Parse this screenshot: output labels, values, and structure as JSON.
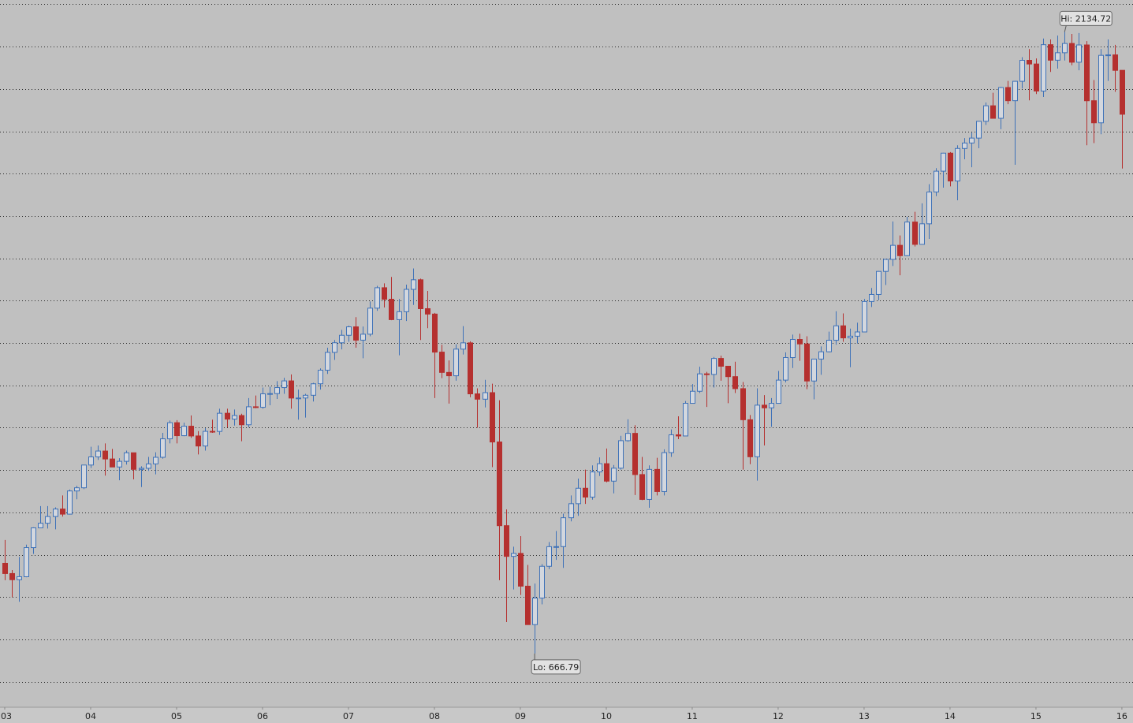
{
  "chart_data": {
    "type": "candlestick",
    "up_color": "#3f72b8",
    "down_color": "#b5302f",
    "grid": true,
    "ylim": [
      540,
      2210
    ],
    "yticks": [
      600,
      700,
      800,
      900,
      1000,
      1100,
      1200,
      1300,
      1400,
      1500,
      1600,
      1700,
      1800,
      1900,
      2000,
      2100,
      2200
    ],
    "xlim": [
      -0.66,
      157.55
    ],
    "xticks": [
      {
        "value": 0,
        "label": "03"
      },
      {
        "value": 12,
        "label": "04"
      },
      {
        "value": 24,
        "label": "05"
      },
      {
        "value": 36,
        "label": "06"
      },
      {
        "value": 48,
        "label": "07"
      },
      {
        "value": 60,
        "label": "08"
      },
      {
        "value": 72,
        "label": "09"
      },
      {
        "value": 84,
        "label": "10"
      },
      {
        "value": 96,
        "label": "11"
      },
      {
        "value": 108,
        "label": "12"
      },
      {
        "value": 120,
        "label": "13"
      },
      {
        "value": 132,
        "label": "14"
      },
      {
        "value": 144,
        "label": "15"
      },
      {
        "value": 156,
        "label": "16"
      }
    ],
    "annotations": [
      {
        "label": "Hi: 2134.72",
        "x": 148,
        "y": 2134.72
      },
      {
        "label": "Lo: 666.79",
        "x": 74,
        "y": 666.79
      }
    ],
    "open": [
      879.82,
      855.7,
      841.15,
      848.18,
      916.92,
      963.59,
      974.5,
      990.31,
      1008.01,
      995.97,
      1050.71,
      1058.2,
      1111.92,
      1131.13,
      1144.94,
      1126.21,
      1107.3,
      1120.68,
      1140.84,
      1101.72,
      1104.24,
      1114.58,
      1130.2,
      1173.82,
      1211.92,
      1181.27,
      1203.6,
      1180.59,
      1156.85,
      1191.5,
      1191.33,
      1234.18,
      1220.33,
      1228.81,
      1207.01,
      1249.48,
      1248.29,
      1280.08,
      1280.66,
      1294.83,
      1310.61,
      1270.09,
      1270.2,
      1276.66,
      1303.82,
      1335.85,
      1377.94,
      1400.63,
      1418.3,
      1438.24,
      1406.82,
      1420.86,
      1482.37,
      1530.62,
      1503.35,
      1455.27,
      1473.99,
      1526.75,
      1549.38,
      1481.14,
      1468.36,
      1378.55,
      1330.63,
      1322.7,
      1385.59,
      1400.38,
      1280,
      1267.38,
      1282.83,
      1166.36,
      968.75,
      896.24,
      903.25,
      825.88,
      735.09,
      797.87,
      872.81,
      919.14,
      919.32,
      987.48,
      1020.62,
      1057.08,
      1036.19,
      1095.63,
      1115.1,
      1073.87,
      1104.49,
      1169.43,
      1186.69,
      1089.41,
      1030.71,
      1101.6,
      1049.33,
      1141.2,
      1183.26,
      1180.55,
      1257.64,
      1286.12,
      1327.22,
      1325.83,
      1363.61,
      1345.2,
      1320.64,
      1292.28,
      1218.89,
      1131.42,
      1253.3,
      1246.96,
      1257.6,
      1312.41,
      1365.68,
      1408.47,
      1397.91,
      1310.33,
      1362.16,
      1379.32,
      1406.58,
      1440.67,
      1412.16,
      1416.18,
      1426.19,
      1498.11,
      1514.68,
      1569.19,
      1597.57,
      1630.74,
      1606.28,
      1685.73,
      1632.97,
      1681.55,
      1756.54,
      1805.81,
      1848.36,
      1782.59,
      1859.45,
      1872.34,
      1883.95,
      1923.57,
      1960.23,
      1930.67,
      2003.37,
      1972.29,
      2018.05,
      2067.56,
      2058.9,
      1994.99,
      2104.5,
      2067.89,
      2085.51,
      2107.39,
      2063.11,
      2103.84,
      1972.18,
      1920.03,
      2079.36,
      2080.41,
      2043.94
    ],
    "high": [
      935,
      864,
      895,
      924,
      965,
      1015,
      1015,
      1012,
      1040,
      1054,
      1063,
      1112,
      1155,
      1158,
      1163,
      1150,
      1128,
      1146,
      1141,
      1109,
      1131,
      1142,
      1188,
      1217,
      1218,
      1212,
      1229,
      1192,
      1199,
      1219,
      1245,
      1245,
      1243,
      1233,
      1270,
      1276,
      1295,
      1297,
      1310,
      1318,
      1326,
      1290,
      1280,
      1306,
      1340,
      1389,
      1407,
      1431,
      1441,
      1461,
      1439,
      1498,
      1535,
      1541,
      1556,
      1504,
      1538,
      1576,
      1552,
      1523,
      1471,
      1396,
      1359,
      1397,
      1440,
      1404,
      1293,
      1313,
      1304,
      1265,
      1007,
      919,
      944,
      876,
      832,
      878,
      930,
      956,
      997,
      1040,
      1080,
      1101,
      1111,
      1130,
      1151,
      1112,
      1181,
      1220,
      1206,
      1131,
      1111,
      1129,
      1149,
      1196,
      1227,
      1263,
      1303,
      1344,
      1332,
      1367,
      1370,
      1346,
      1356,
      1308,
      1230,
      1293,
      1277,
      1270,
      1334,
      1378,
      1420,
      1422,
      1416,
      1363,
      1392,
      1427,
      1475,
      1470,
      1434,
      1448,
      1504,
      1530,
      1570,
      1598,
      1687,
      1654,
      1698,
      1710,
      1730,
      1775,
      1813,
      1849,
      1851,
      1867,
      1884,
      1897,
      1924,
      1968,
      1991,
      2005,
      2019,
      2019,
      2075,
      2094,
      2072,
      2119,
      2117,
      2126,
      2134.72,
      2130,
      2132,
      2113,
      2021,
      2094,
      2117,
      2104,
      2044
    ],
    "low": [
      840,
      800,
      789,
      847,
      902,
      963,
      962,
      960,
      990,
      995,
      1031,
      1055,
      1105,
      1124,
      1087,
      1107,
      1076,
      1113,
      1078,
      1060,
      1098,
      1090,
      1127,
      1163,
      1163,
      1180,
      1176,
      1137,
      1146,
      1188,
      1183,
      1201,
      1205,
      1168,
      1201,
      1246,
      1245,
      1253,
      1268,
      1280,
      1245,
      1219,
      1224,
      1262,
      1290,
      1327,
      1360,
      1385,
      1403,
      1389,
      1364,
      1416,
      1476,
      1484,
      1454,
      1371,
      1452,
      1490,
      1407,
      1435,
      1270,
      1317,
      1257,
      1311,
      1373,
      1272,
      1200,
      1248,
      1107,
      840,
      741,
      818,
      805,
      735,
      666.79,
      783,
      866,
      888,
      869,
      979,
      992,
      1020,
      1030,
      1086,
      1071,
      1045,
      1101,
      1167,
      1041,
      1029,
      1011,
      1040,
      1040,
      1131,
      1173,
      1181,
      1257,
      1282,
      1249,
      1295,
      1311,
      1258,
      1282,
      1101,
      1114,
      1075,
      1158,
      1202,
      1258,
      1307,
      1341,
      1358,
      1291,
      1267,
      1325,
      1378,
      1396,
      1403,
      1343,
      1399,
      1426,
      1485,
      1501,
      1537,
      1582,
      1560,
      1605,
      1628,
      1633,
      1646,
      1747,
      1767,
      1770,
      1737,
      1834,
      1815,
      1860,
      1915,
      1930,
      1905,
      1964,
      1821,
      2001,
      1973,
      1988,
      1981,
      2040,
      2048,
      2067,
      2056,
      2044,
      1867,
      1872,
      1893,
      2019,
      1993,
      1812
    ],
    "close": [
      855.7,
      841.15,
      848.18,
      916.92,
      963.59,
      974.5,
      990.31,
      1008.01,
      995.97,
      1050.71,
      1058.2,
      1111.92,
      1131.13,
      1144.94,
      1126.21,
      1107.3,
      1120.68,
      1140.84,
      1101.72,
      1104.24,
      1114.58,
      1130.2,
      1173.82,
      1211.92,
      1181.27,
      1203.6,
      1180.59,
      1156.85,
      1191.5,
      1191.33,
      1234.18,
      1220.33,
      1228.81,
      1207.01,
      1249.48,
      1248.29,
      1280.08,
      1280.66,
      1294.83,
      1310.61,
      1270.09,
      1270.2,
      1276.66,
      1303.82,
      1335.85,
      1377.94,
      1400.63,
      1418.3,
      1438.24,
      1406.82,
      1420.86,
      1482.37,
      1530.62,
      1503.35,
      1455.27,
      1473.99,
      1526.75,
      1549.38,
      1481.14,
      1468.36,
      1378.55,
      1330.63,
      1322.7,
      1385.59,
      1400.38,
      1280,
      1267.38,
      1282.83,
      1166.36,
      968.75,
      896.24,
      903.25,
      825.88,
      735.09,
      797.87,
      872.81,
      919.14,
      919.32,
      987.48,
      1020.62,
      1057.08,
      1036.19,
      1095.63,
      1115.1,
      1073.87,
      1104.49,
      1169.43,
      1186.69,
      1089.41,
      1030.71,
      1101.6,
      1049.33,
      1141.2,
      1183.26,
      1180.55,
      1257.64,
      1286.12,
      1327.22,
      1325.83,
      1363.61,
      1345.2,
      1320.64,
      1292.28,
      1218.89,
      1131.42,
      1253.3,
      1246.96,
      1257.6,
      1312.41,
      1365.68,
      1408.47,
      1397.91,
      1310.33,
      1362.16,
      1379.32,
      1406.58,
      1440.67,
      1412.16,
      1416.18,
      1426.19,
      1498.11,
      1514.68,
      1569.19,
      1597.57,
      1630.74,
      1606.28,
      1685.73,
      1632.97,
      1681.55,
      1756.54,
      1805.81,
      1848.36,
      1782.59,
      1859.45,
      1872.34,
      1883.95,
      1923.57,
      1960.23,
      1930.67,
      2003.37,
      1972.29,
      2018.05,
      2067.56,
      2058.9,
      1994.99,
      2104.5,
      2067.89,
      2085.51,
      2107.39,
      2063.11,
      2103.84,
      1972.18,
      1920.03,
      2079.36,
      2080.41,
      2043.94,
      1940.24
    ]
  }
}
